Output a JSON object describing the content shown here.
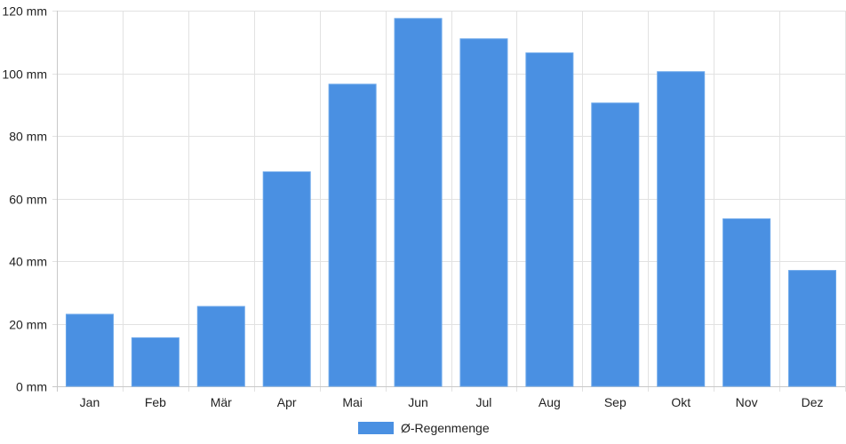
{
  "chart_data": {
    "type": "bar",
    "categories": [
      "Jan",
      "Feb",
      "Mär",
      "Apr",
      "Mai",
      "Jun",
      "Jul",
      "Aug",
      "Sep",
      "Okt",
      "Nov",
      "Dez"
    ],
    "series": [
      {
        "name": "Ø-Regenmenge",
        "values": [
          23,
          15.5,
          25.5,
          68.5,
          96.5,
          117.5,
          111,
          106.5,
          90.5,
          100.5,
          53.5,
          37
        ],
        "color": "#4a90e2"
      }
    ],
    "y_ticks": [
      {
        "value": 0,
        "label": "0 mm"
      },
      {
        "value": 20,
        "label": "20 mm"
      },
      {
        "value": 40,
        "label": "40 mm"
      },
      {
        "value": 60,
        "label": "60 mm"
      },
      {
        "value": 80,
        "label": "80 mm"
      },
      {
        "value": 100,
        "label": "100 mm"
      },
      {
        "value": 120,
        "label": "120 mm"
      }
    ],
    "ylim": [
      0,
      120
    ],
    "grid": true,
    "legend_position": "bottom"
  },
  "legend": {
    "label": "Ø-Regenmenge",
    "color": "#4a90e2"
  }
}
